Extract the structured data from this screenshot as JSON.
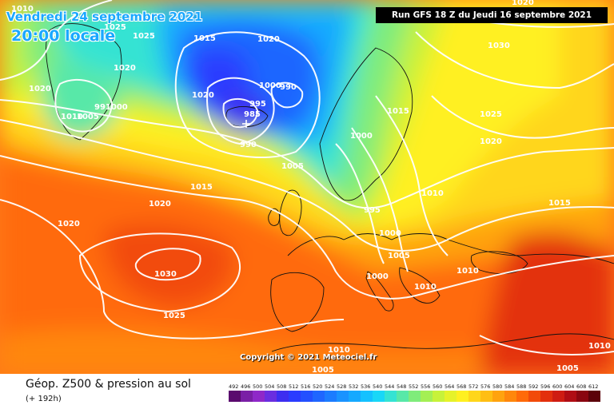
{
  "header": {
    "date": "Vendredi 24 septembre 2021",
    "time": "20:00 locale",
    "run": "Run GFS 18 Z du Jeudi 16 septembre 2021"
  },
  "copyright": "Copyright © 2021 Meteociel.fr",
  "footer": {
    "title": "Géop. Z500 & pression au sol",
    "subtitle": "(+ 192h)"
  },
  "legend": {
    "ticks": [
      "492",
      "496",
      "500",
      "504",
      "508",
      "512",
      "516",
      "520",
      "524",
      "528",
      "532",
      "536",
      "540",
      "544",
      "548",
      "552",
      "556",
      "560",
      "564",
      "568",
      "572",
      "576",
      "580",
      "584",
      "588",
      "592",
      "596",
      "600",
      "604",
      "608",
      "612"
    ],
    "colors": [
      "#5a0a6e",
      "#7a1fa6",
      "#8f28c8",
      "#6a2ee0",
      "#3d2ef0",
      "#2a3cff",
      "#2350ff",
      "#1f66ff",
      "#1c7cff",
      "#1a93ff",
      "#15a9ff",
      "#14c1ff",
      "#19d7f7",
      "#35e3d3",
      "#58e8a8",
      "#7fec7b",
      "#a4ef54",
      "#c7f23a",
      "#e6f22a",
      "#fff020",
      "#ffd61a",
      "#ffbe14",
      "#ffa30f",
      "#ff870c",
      "#ff6a0a",
      "#f24b0a",
      "#e3300d",
      "#cf1c12",
      "#b00d14",
      "#8a0610",
      "#5c020a"
    ]
  },
  "map_labels": [
    {
      "text": "1010"
    },
    {
      "text": "1025"
    },
    {
      "text": "1025"
    },
    {
      "text": "1020"
    },
    {
      "text": "1020"
    },
    {
      "text": "991000"
    },
    {
      "text": "1010"
    },
    {
      "text": "1005"
    },
    {
      "text": "1015"
    },
    {
      "text": "1020"
    },
    {
      "text": "1020"
    },
    {
      "text": "1000"
    },
    {
      "text": "990"
    },
    {
      "text": "995"
    },
    {
      "text": "985"
    },
    {
      "text": "990"
    },
    {
      "text": "1005"
    },
    {
      "text": "1015"
    },
    {
      "text": "1000"
    },
    {
      "text": "1030"
    },
    {
      "text": "1025"
    },
    {
      "text": "1020"
    },
    {
      "text": "1020"
    },
    {
      "text": "1015"
    },
    {
      "text": "1020"
    },
    {
      "text": "1020"
    },
    {
      "text": "1030"
    },
    {
      "text": "1025"
    },
    {
      "text": "995"
    },
    {
      "text": "1000"
    },
    {
      "text": "1005"
    },
    {
      "text": "1010"
    },
    {
      "text": "1010"
    },
    {
      "text": "1000"
    },
    {
      "text": "1010"
    },
    {
      "text": "1015"
    },
    {
      "text": "1010"
    },
    {
      "text": "1005"
    },
    {
      "text": "1005"
    },
    {
      "text": "1010"
    }
  ]
}
